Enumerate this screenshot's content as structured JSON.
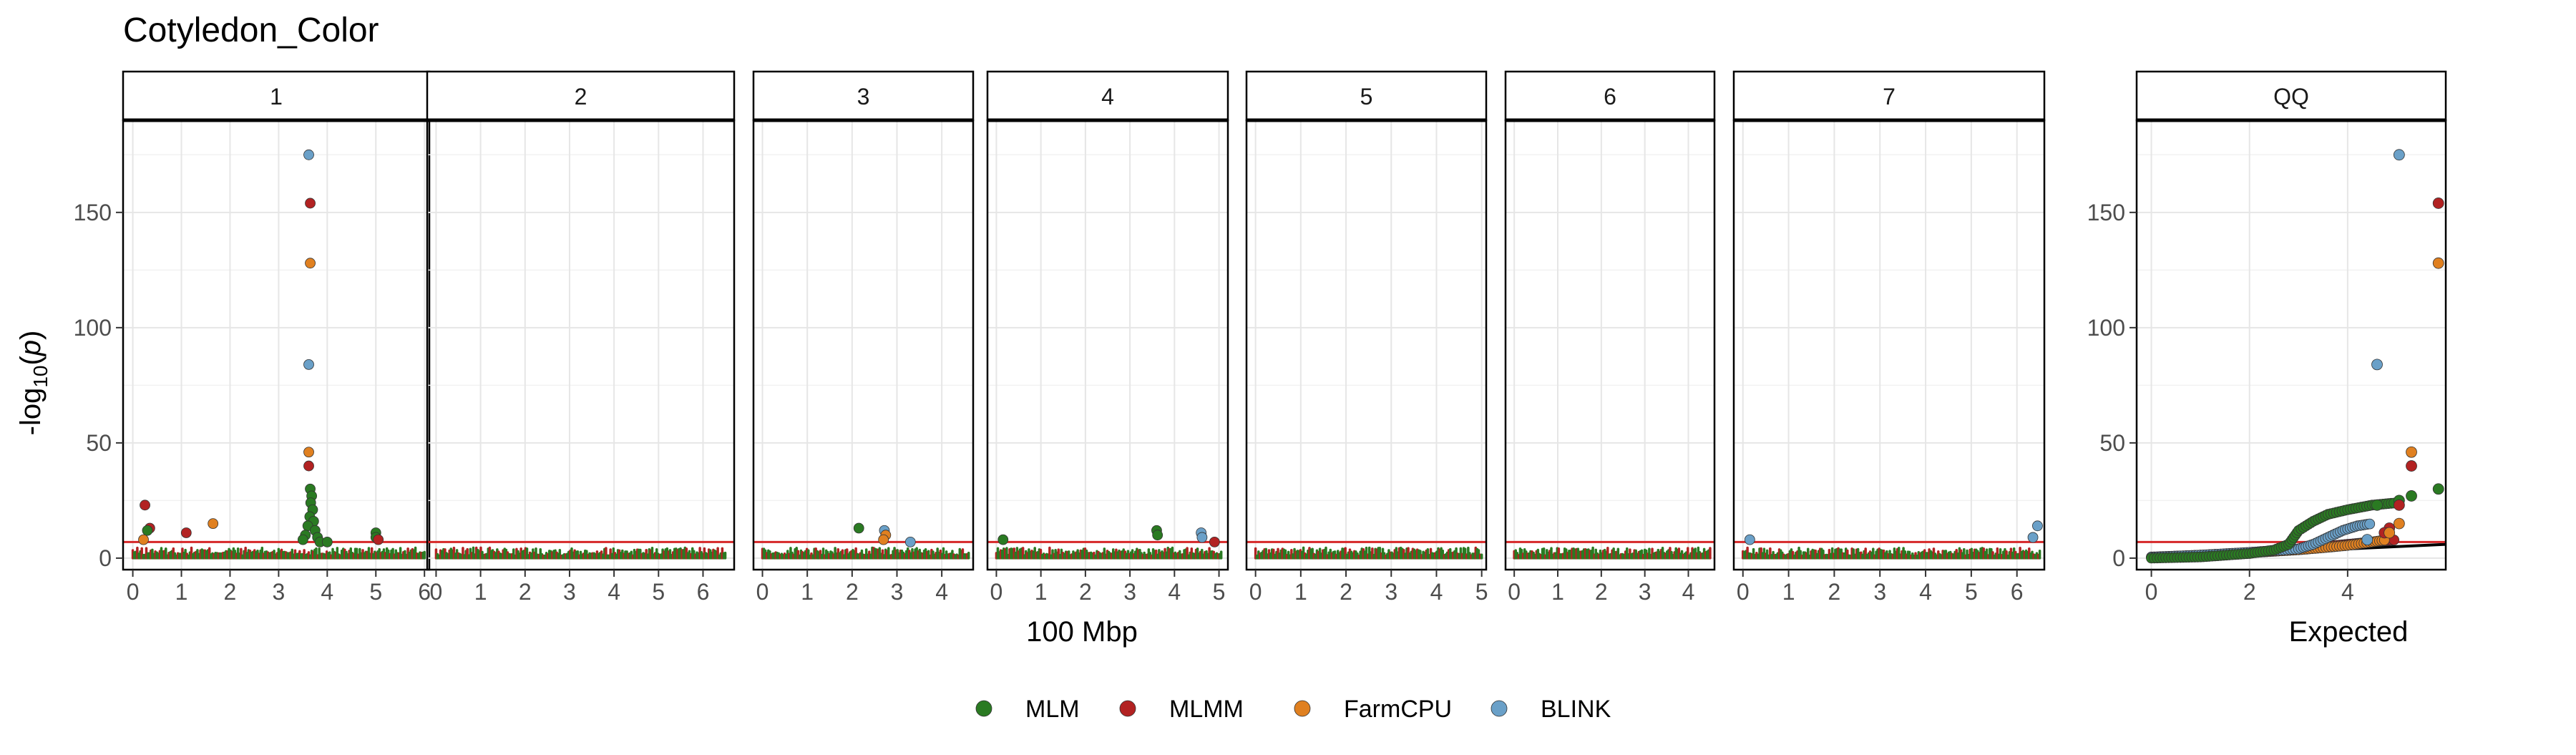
{
  "chart_data": {
    "type": "scatter",
    "title": "Cotyledon_Color",
    "ylabel": {
      "base": "-log",
      "sub": "10",
      "paren_open": "(",
      "var": "p",
      "paren_close": ")"
    },
    "ylim": [
      -5,
      190
    ],
    "yticks": [
      0,
      50,
      100,
      150
    ],
    "threshold": 7.0,
    "threshold_color": "#d62728",
    "expected_line_color": "#000000",
    "colors": {
      "MLM": "#2a7a22",
      "MLMM": "#b22222",
      "FarmCPU": "#e08020",
      "BLINK": "#6aa0c8"
    },
    "legend": {
      "position": "bottom",
      "items": [
        "MLM",
        "MLMM",
        "FarmCPU",
        "BLINK"
      ]
    },
    "manhattan": {
      "xlabel": "100 Mbp",
      "panels": [
        {
          "label": "1",
          "xlim": [
            -0.2,
            6.1
          ],
          "xticks": [
            "0",
            "1",
            "2",
            "3",
            "4",
            "5",
            "6"
          ],
          "band": [
            0,
            6.0
          ],
          "points": [
            {
              "s": "MLMM",
              "x": 0.25,
              "y": 23
            },
            {
              "s": "MLMM",
              "x": 0.35,
              "y": 13
            },
            {
              "s": "MLM",
              "x": 0.3,
              "y": 12
            },
            {
              "s": "FarmCPU",
              "x": 0.22,
              "y": 8
            },
            {
              "s": "MLMM",
              "x": 1.1,
              "y": 11
            },
            {
              "s": "FarmCPU",
              "x": 1.65,
              "y": 15
            },
            {
              "s": "BLINK",
              "x": 3.62,
              "y": 175
            },
            {
              "s": "MLMM",
              "x": 3.65,
              "y": 154
            },
            {
              "s": "FarmCPU",
              "x": 3.65,
              "y": 128
            },
            {
              "s": "BLINK",
              "x": 3.62,
              "y": 84
            },
            {
              "s": "FarmCPU",
              "x": 3.62,
              "y": 46
            },
            {
              "s": "MLMM",
              "x": 3.62,
              "y": 40
            },
            {
              "s": "MLM",
              "x": 3.65,
              "y": 30
            },
            {
              "s": "MLM",
              "x": 3.68,
              "y": 27
            },
            {
              "s": "MLM",
              "x": 3.66,
              "y": 24
            },
            {
              "s": "MLM",
              "x": 3.7,
              "y": 21
            },
            {
              "s": "MLM",
              "x": 3.64,
              "y": 18
            },
            {
              "s": "MLM",
              "x": 3.72,
              "y": 16
            },
            {
              "s": "MLM",
              "x": 3.6,
              "y": 14
            },
            {
              "s": "MLM",
              "x": 3.75,
              "y": 12
            },
            {
              "s": "MLM",
              "x": 3.55,
              "y": 10
            },
            {
              "s": "MLM",
              "x": 3.8,
              "y": 9
            },
            {
              "s": "MLM",
              "x": 3.5,
              "y": 8
            },
            {
              "s": "MLM",
              "x": 3.85,
              "y": 7
            },
            {
              "s": "MLM",
              "x": 4.0,
              "y": 7
            },
            {
              "s": "MLM",
              "x": 5.0,
              "y": 11
            },
            {
              "s": "MLM",
              "x": 5.0,
              "y": 9
            },
            {
              "s": "MLMM",
              "x": 5.05,
              "y": 8
            }
          ]
        },
        {
          "label": "2",
          "xlim": [
            -0.2,
            6.7
          ],
          "xticks": [
            "0",
            "1",
            "2",
            "3",
            "4",
            "5",
            "6"
          ],
          "band": [
            0,
            6.5
          ],
          "points": []
        },
        {
          "label": "3",
          "xlim": [
            -0.2,
            4.7
          ],
          "xticks": [
            "0",
            "1",
            "2",
            "3",
            "4"
          ],
          "band": [
            0,
            4.6
          ],
          "points": [
            {
              "s": "MLM",
              "x": 2.15,
              "y": 13
            },
            {
              "s": "BLINK",
              "x": 2.72,
              "y": 12
            },
            {
              "s": "FarmCPU",
              "x": 2.75,
              "y": 10
            },
            {
              "s": "FarmCPU",
              "x": 2.7,
              "y": 8
            },
            {
              "s": "BLINK",
              "x": 3.3,
              "y": 7
            }
          ]
        },
        {
          "label": "4",
          "xlim": [
            -0.2,
            5.2
          ],
          "xticks": [
            "0",
            "1",
            "2",
            "3",
            "4",
            "5"
          ],
          "band": [
            0,
            5.05
          ],
          "points": [
            {
              "s": "MLM",
              "x": 0.15,
              "y": 8
            },
            {
              "s": "MLM",
              "x": 3.6,
              "y": 12
            },
            {
              "s": "MLM",
              "x": 3.62,
              "y": 10
            },
            {
              "s": "BLINK",
              "x": 4.6,
              "y": 11
            },
            {
              "s": "BLINK",
              "x": 4.62,
              "y": 9
            },
            {
              "s": "MLMM",
              "x": 4.9,
              "y": 7
            }
          ]
        },
        {
          "label": "5",
          "xlim": [
            -0.2,
            5.1
          ],
          "xticks": [
            "0",
            "1",
            "2",
            "3",
            "4",
            "5"
          ],
          "band": [
            0,
            5.0
          ],
          "points": []
        },
        {
          "label": "6",
          "xlim": [
            -0.2,
            4.6
          ],
          "xticks": [
            "0",
            "1",
            "2",
            "3",
            "4"
          ],
          "band": [
            0,
            4.5
          ],
          "points": []
        },
        {
          "label": "7",
          "xlim": [
            -0.2,
            6.6
          ],
          "xticks": [
            "0",
            "1",
            "2",
            "3",
            "4",
            "5",
            "6"
          ],
          "band": [
            0,
            6.5
          ],
          "points": [
            {
              "s": "BLINK",
              "x": 0.15,
              "y": 8
            },
            {
              "s": "BLINK",
              "x": 6.35,
              "y": 9
            },
            {
              "s": "BLINK",
              "x": 6.45,
              "y": 14
            }
          ]
        }
      ]
    },
    "qq": {
      "label": "QQ",
      "xlabel": "Expected",
      "xlim": [
        -0.3,
        6.0
      ],
      "xticks": [
        "0",
        "2",
        "4"
      ],
      "curves": {
        "MLM": [
          [
            0,
            0
          ],
          [
            1,
            0.5
          ],
          [
            2,
            2
          ],
          [
            2.5,
            3.5
          ],
          [
            2.8,
            6
          ],
          [
            3.0,
            12
          ],
          [
            3.3,
            16
          ],
          [
            3.6,
            19
          ],
          [
            4.0,
            21
          ],
          [
            4.5,
            23
          ],
          [
            5.0,
            24
          ]
        ],
        "MLMM": [
          [
            0,
            0.5
          ],
          [
            1,
            1.3
          ],
          [
            2,
            2.4
          ],
          [
            3,
            4
          ],
          [
            3.5,
            5
          ],
          [
            4,
            6
          ],
          [
            4.5,
            7
          ],
          [
            5,
            8
          ]
        ],
        "FarmCPU": [
          [
            0,
            0.3
          ],
          [
            1,
            1.2
          ],
          [
            2,
            2.3
          ],
          [
            3,
            3.6
          ],
          [
            3.5,
            4.5
          ],
          [
            4,
            5.5
          ],
          [
            4.5,
            7
          ],
          [
            4.8,
            8
          ]
        ],
        "BLINK": [
          [
            0,
            0.4
          ],
          [
            1,
            1.3
          ],
          [
            2,
            2.5
          ],
          [
            3,
            4
          ],
          [
            3.3,
            6
          ],
          [
            3.6,
            9
          ],
          [
            3.9,
            12
          ],
          [
            4.2,
            14
          ],
          [
            4.5,
            15
          ]
        ]
      },
      "points": [
        {
          "s": "BLINK",
          "x": 5.05,
          "y": 175
        },
        {
          "s": "MLMM",
          "x": 5.85,
          "y": 154
        },
        {
          "s": "FarmCPU",
          "x": 5.85,
          "y": 128
        },
        {
          "s": "BLINK",
          "x": 4.6,
          "y": 84
        },
        {
          "s": "FarmCPU",
          "x": 5.3,
          "y": 46
        },
        {
          "s": "MLMM",
          "x": 5.3,
          "y": 40
        },
        {
          "s": "MLM",
          "x": 5.85,
          "y": 30
        },
        {
          "s": "MLM",
          "x": 5.3,
          "y": 27
        },
        {
          "s": "MLM",
          "x": 5.05,
          "y": 25
        },
        {
          "s": "MLMM",
          "x": 5.05,
          "y": 23
        },
        {
          "s": "FarmCPU",
          "x": 5.05,
          "y": 15
        },
        {
          "s": "MLMM",
          "x": 4.85,
          "y": 13
        },
        {
          "s": "MLMM",
          "x": 4.75,
          "y": 11
        },
        {
          "s": "FarmCPU",
          "x": 4.85,
          "y": 11
        },
        {
          "s": "BLINK",
          "x": 4.4,
          "y": 8
        },
        {
          "s": "MLM",
          "x": 4.6,
          "y": 23
        }
      ]
    }
  }
}
